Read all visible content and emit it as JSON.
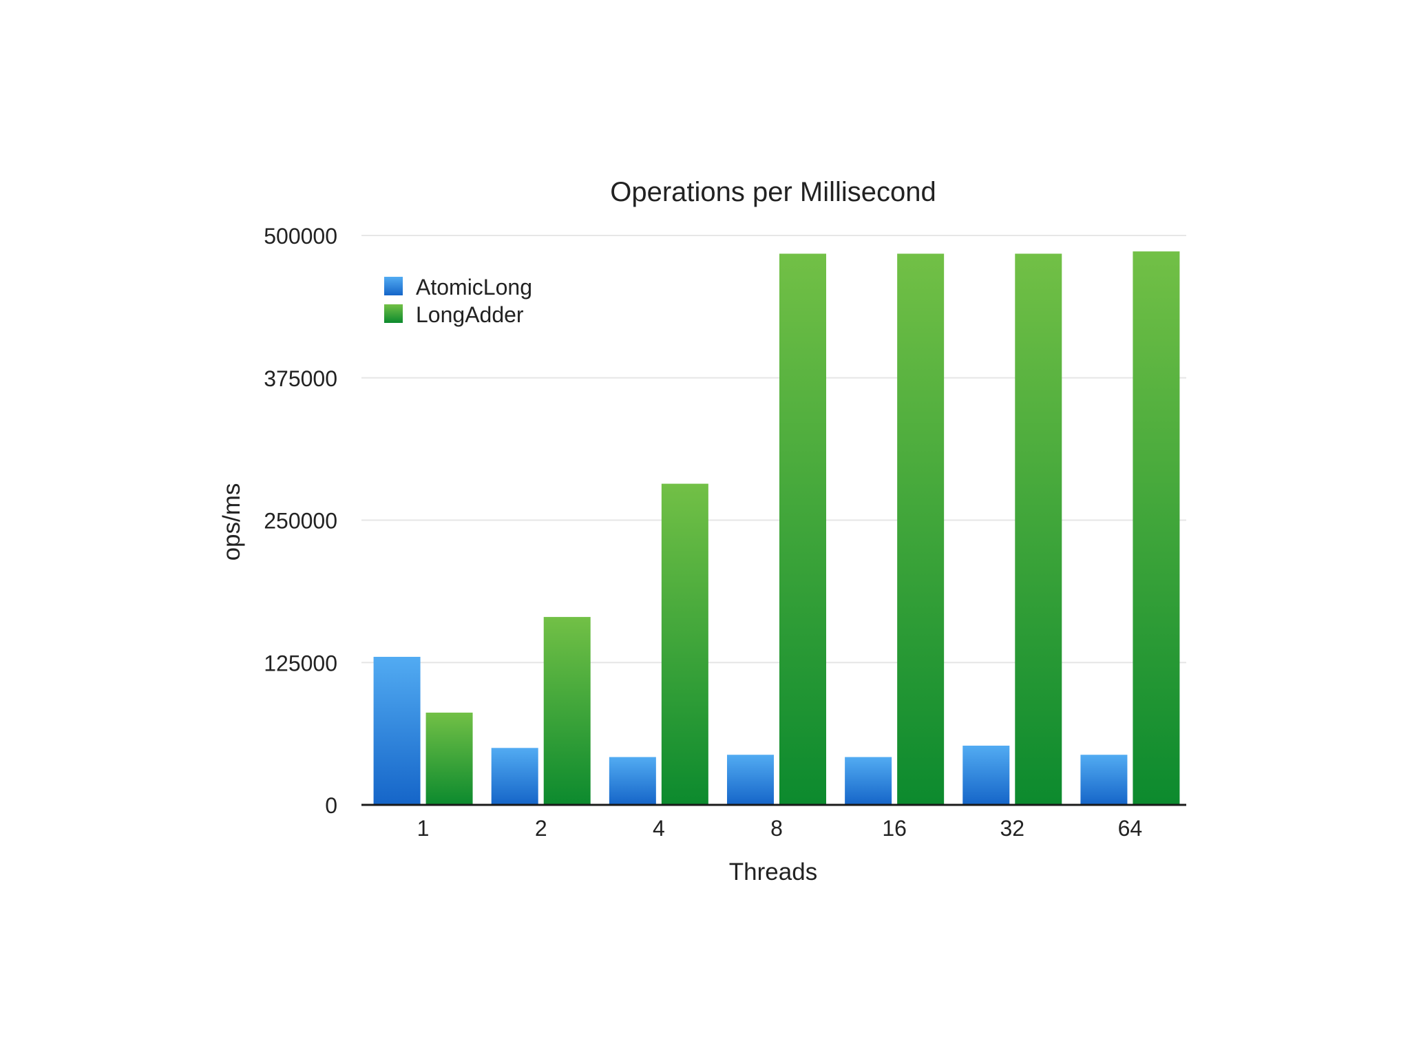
{
  "chart_data": {
    "type": "bar",
    "title": "Operations per Millisecond",
    "xlabel": "Threads",
    "ylabel": "ops/ms",
    "categories": [
      "1",
      "2",
      "4",
      "8",
      "16",
      "32",
      "64"
    ],
    "ylim": [
      0,
      500000
    ],
    "yticks": [
      "0",
      "125000",
      "250000",
      "375000",
      "500000"
    ],
    "grid": true,
    "legend_position": "top-left",
    "series": [
      {
        "name": "AtomicLong",
        "color": "#3d8fe0",
        "values": [
          130000,
          50000,
          42000,
          44000,
          42000,
          52000,
          44000
        ]
      },
      {
        "name": "LongAdder",
        "color": "#3aa83a",
        "values": [
          81000,
          165000,
          282000,
          484000,
          484000,
          484000,
          486000
        ]
      }
    ]
  }
}
